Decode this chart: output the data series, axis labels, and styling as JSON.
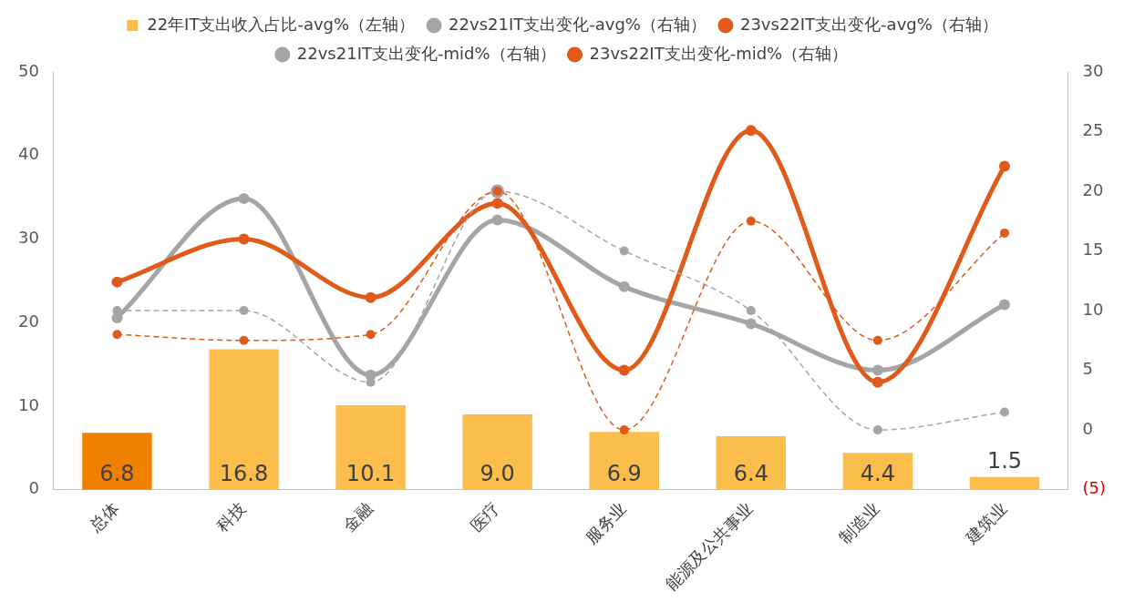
{
  "chart_data": {
    "type": "bar",
    "categories": [
      "总体",
      "科技",
      "金融",
      "医疗",
      "服务业",
      "能源及公共事业",
      "制造业",
      "建筑业"
    ],
    "series": [
      {
        "name": "22年IT支出收入占比-avg%（左轴）",
        "color": "#fbbd4c",
        "colors": [
          "#f08000",
          "#fbbd4c",
          "#fbbd4c",
          "#fbbd4c",
          "#fbbd4c",
          "#fbbd4c",
          "#fbbd4c",
          "#fbbd4c"
        ],
        "values": [
          6.8,
          16.8,
          10.1,
          9.0,
          6.9,
          6.4,
          4.4,
          1.5
        ],
        "value_labels": [
          "6.8",
          "16.8",
          "10.1",
          "9.0",
          "6.9",
          "6.4",
          "4.4",
          "1.5"
        ]
      },
      {
        "name": "22vs21IT支出变化-avg%（右轴）",
        "type": "line",
        "axis": "y2",
        "color": "#a5a5a5",
        "line_style": "solid",
        "values": [
          9.4,
          19.4,
          4.6,
          17.6,
          12.0,
          8.9,
          5.0,
          10.5
        ]
      },
      {
        "name": "23vs22IT支出变化-avg%（右轴）",
        "type": "line",
        "axis": "y2",
        "color": "#e05a1a",
        "line_style": "solid",
        "values": [
          12.4,
          16.0,
          11.1,
          19.0,
          5.0,
          25.1,
          4.0,
          22.1
        ]
      },
      {
        "name": "22vs21IT支出变化-mid%（右轴）",
        "type": "line",
        "axis": "y2",
        "color": "#a5a5a5",
        "line_style": "dashed",
        "values": [
          10.0,
          10.0,
          4.0,
          20.0,
          15.0,
          10.0,
          0,
          1.5
        ]
      },
      {
        "name": "23vs22IT支出变化-mid%（右轴）",
        "type": "line",
        "axis": "y2",
        "color": "#e05a1a",
        "line_style": "dashed",
        "values": [
          8.0,
          7.5,
          8.0,
          20.0,
          0,
          17.5,
          7.5,
          16.5
        ]
      }
    ],
    "ylim": [
      0,
      50
    ],
    "yticks": [
      0,
      10,
      20,
      30,
      40,
      50
    ],
    "y2lim": [
      -5,
      30
    ],
    "y2ticks": [
      {
        "value": -5,
        "label": "(5)"
      },
      0,
      5,
      10,
      15,
      20,
      25,
      30
    ],
    "marker": "circle",
    "legend": "top",
    "grid": false
  }
}
